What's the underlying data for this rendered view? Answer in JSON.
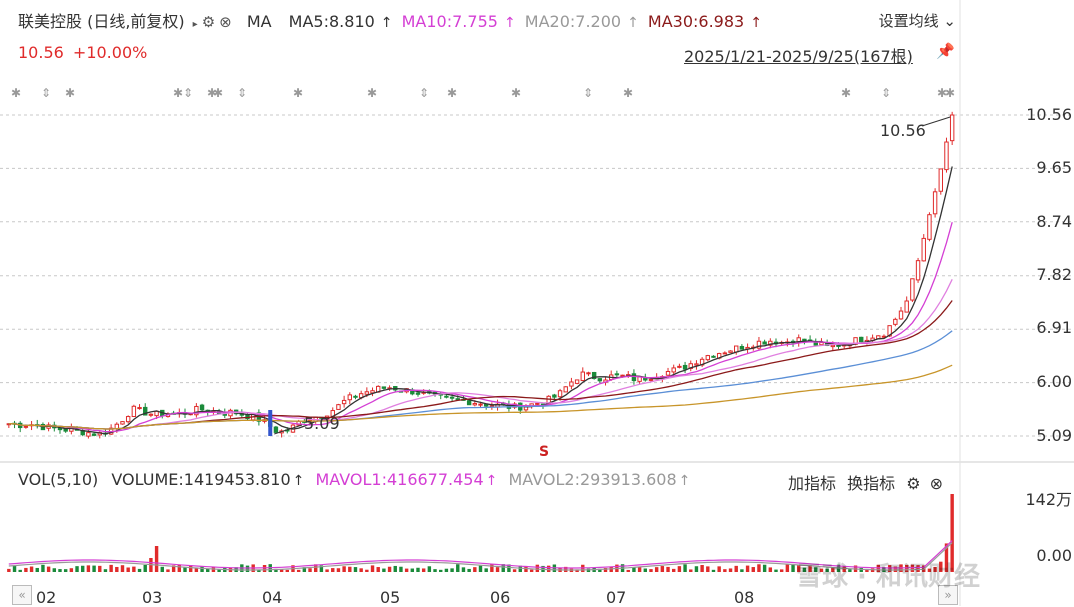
{
  "header": {
    "stock_title": "联美控股 (日线,前复权)",
    "indicator": "MA",
    "ma5": "MA5:8.810",
    "ma10": "MA10:7.755",
    "ma20": "MA20:7.200",
    "ma30": "MA30:6.983",
    "up_arrow": "↑",
    "settings_label": "设置均线 ⌄",
    "price": "10.56",
    "change": "+10.00%",
    "date_range": "2025/1/21-2025/9/25(167根)",
    "colors": {
      "up": "#e02b2b",
      "ma10": "#d43fd4",
      "ma20": "#999999",
      "ma30": "#8b1a1a"
    }
  },
  "volume_header": {
    "label": "VOL(5,10)",
    "volume": "VOLUME:1419453.810",
    "mavol1": "MAVOL1:416677.454",
    "mavol2": "MAVOL2:293913.608",
    "add_indicator": "加指标",
    "switch_indicator": "换指标"
  },
  "watermark": "雪球 · 和讯财经",
  "chart_data": {
    "type": "candlestick",
    "period": "daily",
    "bars_count": 167,
    "price_axis": {
      "ticks": [
        "10.56",
        "9.65",
        "8.74",
        "7.82",
        "6.91",
        "6.00",
        "5.09"
      ],
      "range": [
        5.09,
        10.56
      ],
      "grid": "dashed"
    },
    "volume_axis": {
      "ticks": [
        "142万",
        "0.00"
      ]
    },
    "x_axis": {
      "ticks": [
        "02",
        "03",
        "04",
        "05",
        "06",
        "07",
        "08",
        "09"
      ]
    },
    "annotations": {
      "high_label": "10.56",
      "low_label": "5.09",
      "marker": "S"
    },
    "close_path": [
      5.3,
      5.28,
      5.29,
      5.25,
      5.22,
      5.2,
      5.18,
      5.15,
      5.12,
      5.2,
      5.35,
      5.55,
      5.5,
      5.45,
      5.48,
      5.46,
      5.5,
      5.55,
      5.52,
      5.48,
      5.5,
      5.45,
      5.4,
      5.3,
      5.15,
      5.2,
      5.35,
      5.4,
      5.45,
      5.55,
      5.7,
      5.8,
      5.85,
      5.9,
      5.92,
      5.88,
      5.85,
      5.8,
      5.75,
      5.72,
      5.7,
      5.68,
      5.65,
      5.62,
      5.6,
      5.58,
      5.6,
      5.65,
      5.7,
      5.8,
      6.0,
      6.15,
      6.1,
      6.08,
      6.12,
      6.1,
      6.05,
      6.1,
      6.15,
      6.2,
      6.25,
      6.35,
      6.45,
      6.5,
      6.55,
      6.6,
      6.65,
      6.7,
      6.72,
      6.68,
      6.75,
      6.7,
      6.65,
      6.6,
      6.65,
      6.7,
      6.75,
      6.8,
      6.85,
      7.1,
      7.4,
      8.1,
      8.88,
      9.65,
      10.56
    ]
  }
}
